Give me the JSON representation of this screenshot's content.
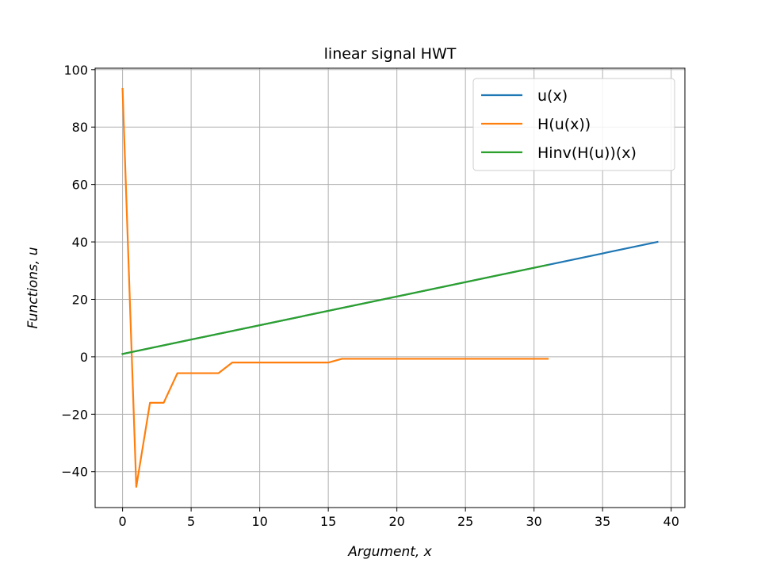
{
  "chart_data": {
    "type": "line",
    "title": "linear signal HWT",
    "xlabel": "Argument, x",
    "ylabel": "Functions, u",
    "xlim": [
      -2,
      41
    ],
    "ylim": [
      -52.5,
      100.5
    ],
    "xticks": [
      0,
      5,
      10,
      15,
      20,
      25,
      30,
      35,
      40
    ],
    "yticks": [
      -40,
      -20,
      0,
      20,
      40,
      60,
      80,
      100
    ],
    "ytick_labels": [
      "−40",
      "−20",
      "0",
      "20",
      "40",
      "60",
      "80",
      "100"
    ],
    "grid": true,
    "legend_position": "top-right",
    "series": [
      {
        "name": "u(x)",
        "color": "#1f77b4",
        "x": [
          0,
          39
        ],
        "y": [
          1,
          40
        ]
      },
      {
        "name": "H(u(x))",
        "color": "#ff7f0e",
        "x": [
          0,
          1,
          2,
          3,
          4,
          5,
          6,
          7,
          8,
          9,
          10,
          11,
          12,
          13,
          14,
          15,
          16,
          17,
          18,
          19,
          20,
          21,
          22,
          23,
          24,
          25,
          26,
          27,
          28,
          29,
          30,
          31
        ],
        "y": [
          93.3,
          -45.3,
          -16,
          -16,
          -5.7,
          -5.7,
          -5.7,
          -5.7,
          -2,
          -2,
          -2,
          -2,
          -2,
          -2,
          -2,
          -2,
          -0.7,
          -0.7,
          -0.7,
          -0.7,
          -0.7,
          -0.7,
          -0.7,
          -0.7,
          -0.7,
          -0.7,
          -0.7,
          -0.7,
          -0.7,
          -0.7,
          -0.7,
          -0.7
        ]
      },
      {
        "name": "Hinv(H(u))(x)",
        "color": "#2ca02c",
        "x": [
          0,
          31
        ],
        "y": [
          1,
          32
        ]
      }
    ]
  }
}
